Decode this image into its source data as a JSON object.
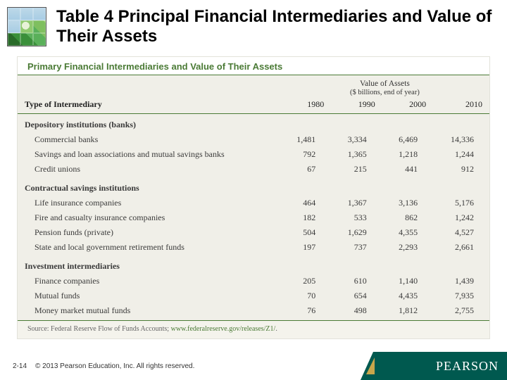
{
  "slide": {
    "title": "Table 4  Principal Financial Intermediaries and Value of Their Assets",
    "page_number": "2-14",
    "copyright": "© 2013 Pearson Education, Inc. All rights reserved.",
    "brand": "PEARSON"
  },
  "table": {
    "type": "table",
    "title": "Primary Financial Intermediaries and Value of Their Assets",
    "background_color": "#f0efe8",
    "rule_color": "#4a7a35",
    "header": {
      "group_label": "Value of Assets",
      "group_sub": "($ billions, end of year)",
      "row_label": "Type of Intermediary",
      "years": [
        "1980",
        "1990",
        "2000",
        "2010"
      ]
    },
    "sections": [
      {
        "label": "Depository institutions (banks)",
        "rows": [
          {
            "label": "Commercial banks",
            "values": [
              "1,481",
              "3,334",
              "6,469",
              "14,336"
            ]
          },
          {
            "label": "Savings and loan associations and mutual savings banks",
            "values": [
              "792",
              "1,365",
              "1,218",
              "1,244"
            ]
          },
          {
            "label": "Credit unions",
            "values": [
              "67",
              "215",
              "441",
              "912"
            ]
          }
        ]
      },
      {
        "label": "Contractual savings institutions",
        "rows": [
          {
            "label": "Life insurance companies",
            "values": [
              "464",
              "1,367",
              "3,136",
              "5,176"
            ]
          },
          {
            "label": "Fire and casualty insurance companies",
            "values": [
              "182",
              "533",
              "862",
              "1,242"
            ]
          },
          {
            "label": "Pension funds (private)",
            "values": [
              "504",
              "1,629",
              "4,355",
              "4,527"
            ]
          },
          {
            "label": "State and local government retirement funds",
            "values": [
              "197",
              "737",
              "2,293",
              "2,661"
            ]
          }
        ]
      },
      {
        "label": "Investment intermediaries",
        "rows": [
          {
            "label": "Finance companies",
            "values": [
              "205",
              "610",
              "1,140",
              "1,439"
            ]
          },
          {
            "label": "Mutual funds",
            "values": [
              "70",
              "654",
              "4,435",
              "7,935"
            ]
          },
          {
            "label": "Money market mutual funds",
            "values": [
              "76",
              "498",
              "1,812",
              "2,755"
            ]
          }
        ]
      }
    ],
    "source_prefix": "Source: Federal Reserve Flow of Funds Accounts; ",
    "source_link": "www.federalreserve.gov/releases/Z1/"
  },
  "colors": {
    "accent_green": "#4a7a35",
    "brand_green": "#00594f",
    "brand_gold": "#c8a64b"
  }
}
